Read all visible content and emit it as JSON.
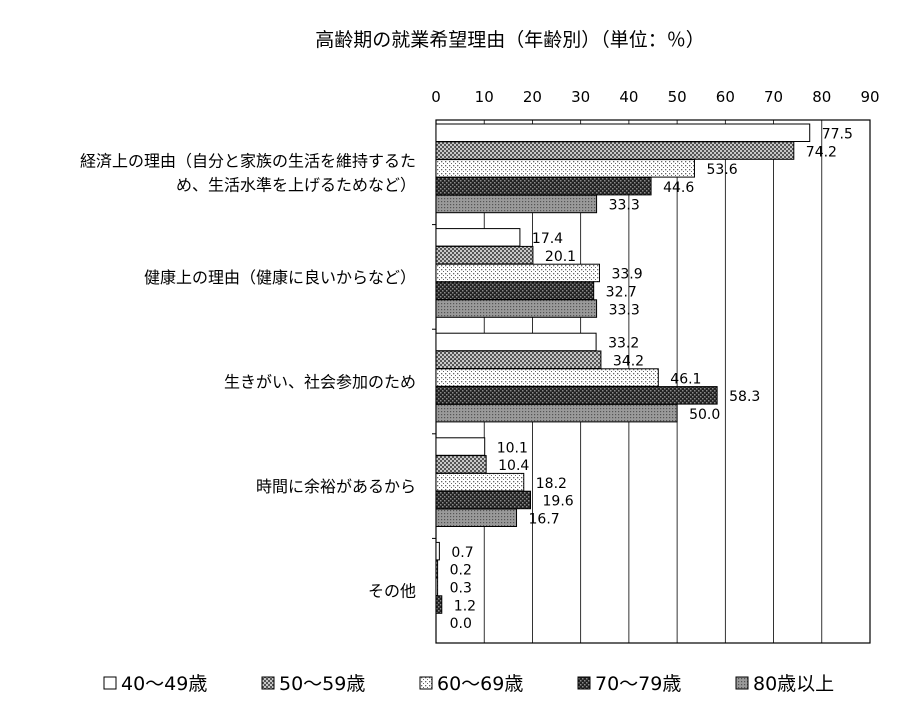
{
  "chart_data": {
    "type": "bar",
    "orientation": "horizontal",
    "title": "高齢期の就業希望理由（年齢別）（単位：％）",
    "xlim": [
      0,
      90
    ],
    "x_ticks": [
      "0",
      "10",
      "20",
      "30",
      "40",
      "50",
      "60",
      "70",
      "80",
      "90"
    ],
    "categories": [
      [
        "経済上の理由（自分と家族の生活を維持するた",
        "め、生活水準を上げるためなど）"
      ],
      [
        "健康上の理由（健康に良いからなど）"
      ],
      [
        "生きがい、社会参加のため"
      ],
      [
        "時間に余裕があるから"
      ],
      [
        "その他"
      ]
    ],
    "series": [
      {
        "name": "40～49歳",
        "values": [
          77.5,
          17.4,
          33.2,
          10.1,
          0.7
        ],
        "labels": [
          "77.5",
          "17.4",
          "33.2",
          "10.1",
          "0.7"
        ],
        "color": "#ffffff",
        "pattern": "none"
      },
      {
        "name": "50～59歳",
        "values": [
          74.2,
          20.1,
          34.2,
          10.4,
          0.2
        ],
        "labels": [
          "74.2",
          "20.1",
          "34.2",
          "10.4",
          "0.2"
        ],
        "color": "#888888",
        "pattern": "checker"
      },
      {
        "name": "60～69歳",
        "values": [
          53.6,
          33.9,
          46.1,
          18.2,
          0.3
        ],
        "labels": [
          "53.6",
          "33.9",
          "46.1",
          "18.2",
          "0.3"
        ],
        "color": "#dddddd",
        "pattern": "dots"
      },
      {
        "name": "70～79歳",
        "values": [
          44.6,
          32.7,
          58.3,
          19.6,
          1.2
        ],
        "labels": [
          "44.6",
          "32.7",
          "58.3",
          "19.6",
          "1.2"
        ],
        "color": "#333333",
        "pattern": "dark-checker"
      },
      {
        "name": "80歳以上",
        "values": [
          33.3,
          33.3,
          50.0,
          16.7,
          0.0
        ],
        "labels": [
          "33.3",
          "33.3",
          "50.0",
          "16.7",
          "0.0"
        ],
        "color": "#999999",
        "pattern": "fine-dots"
      }
    ],
    "grid": true,
    "legend_position": "bottom"
  }
}
